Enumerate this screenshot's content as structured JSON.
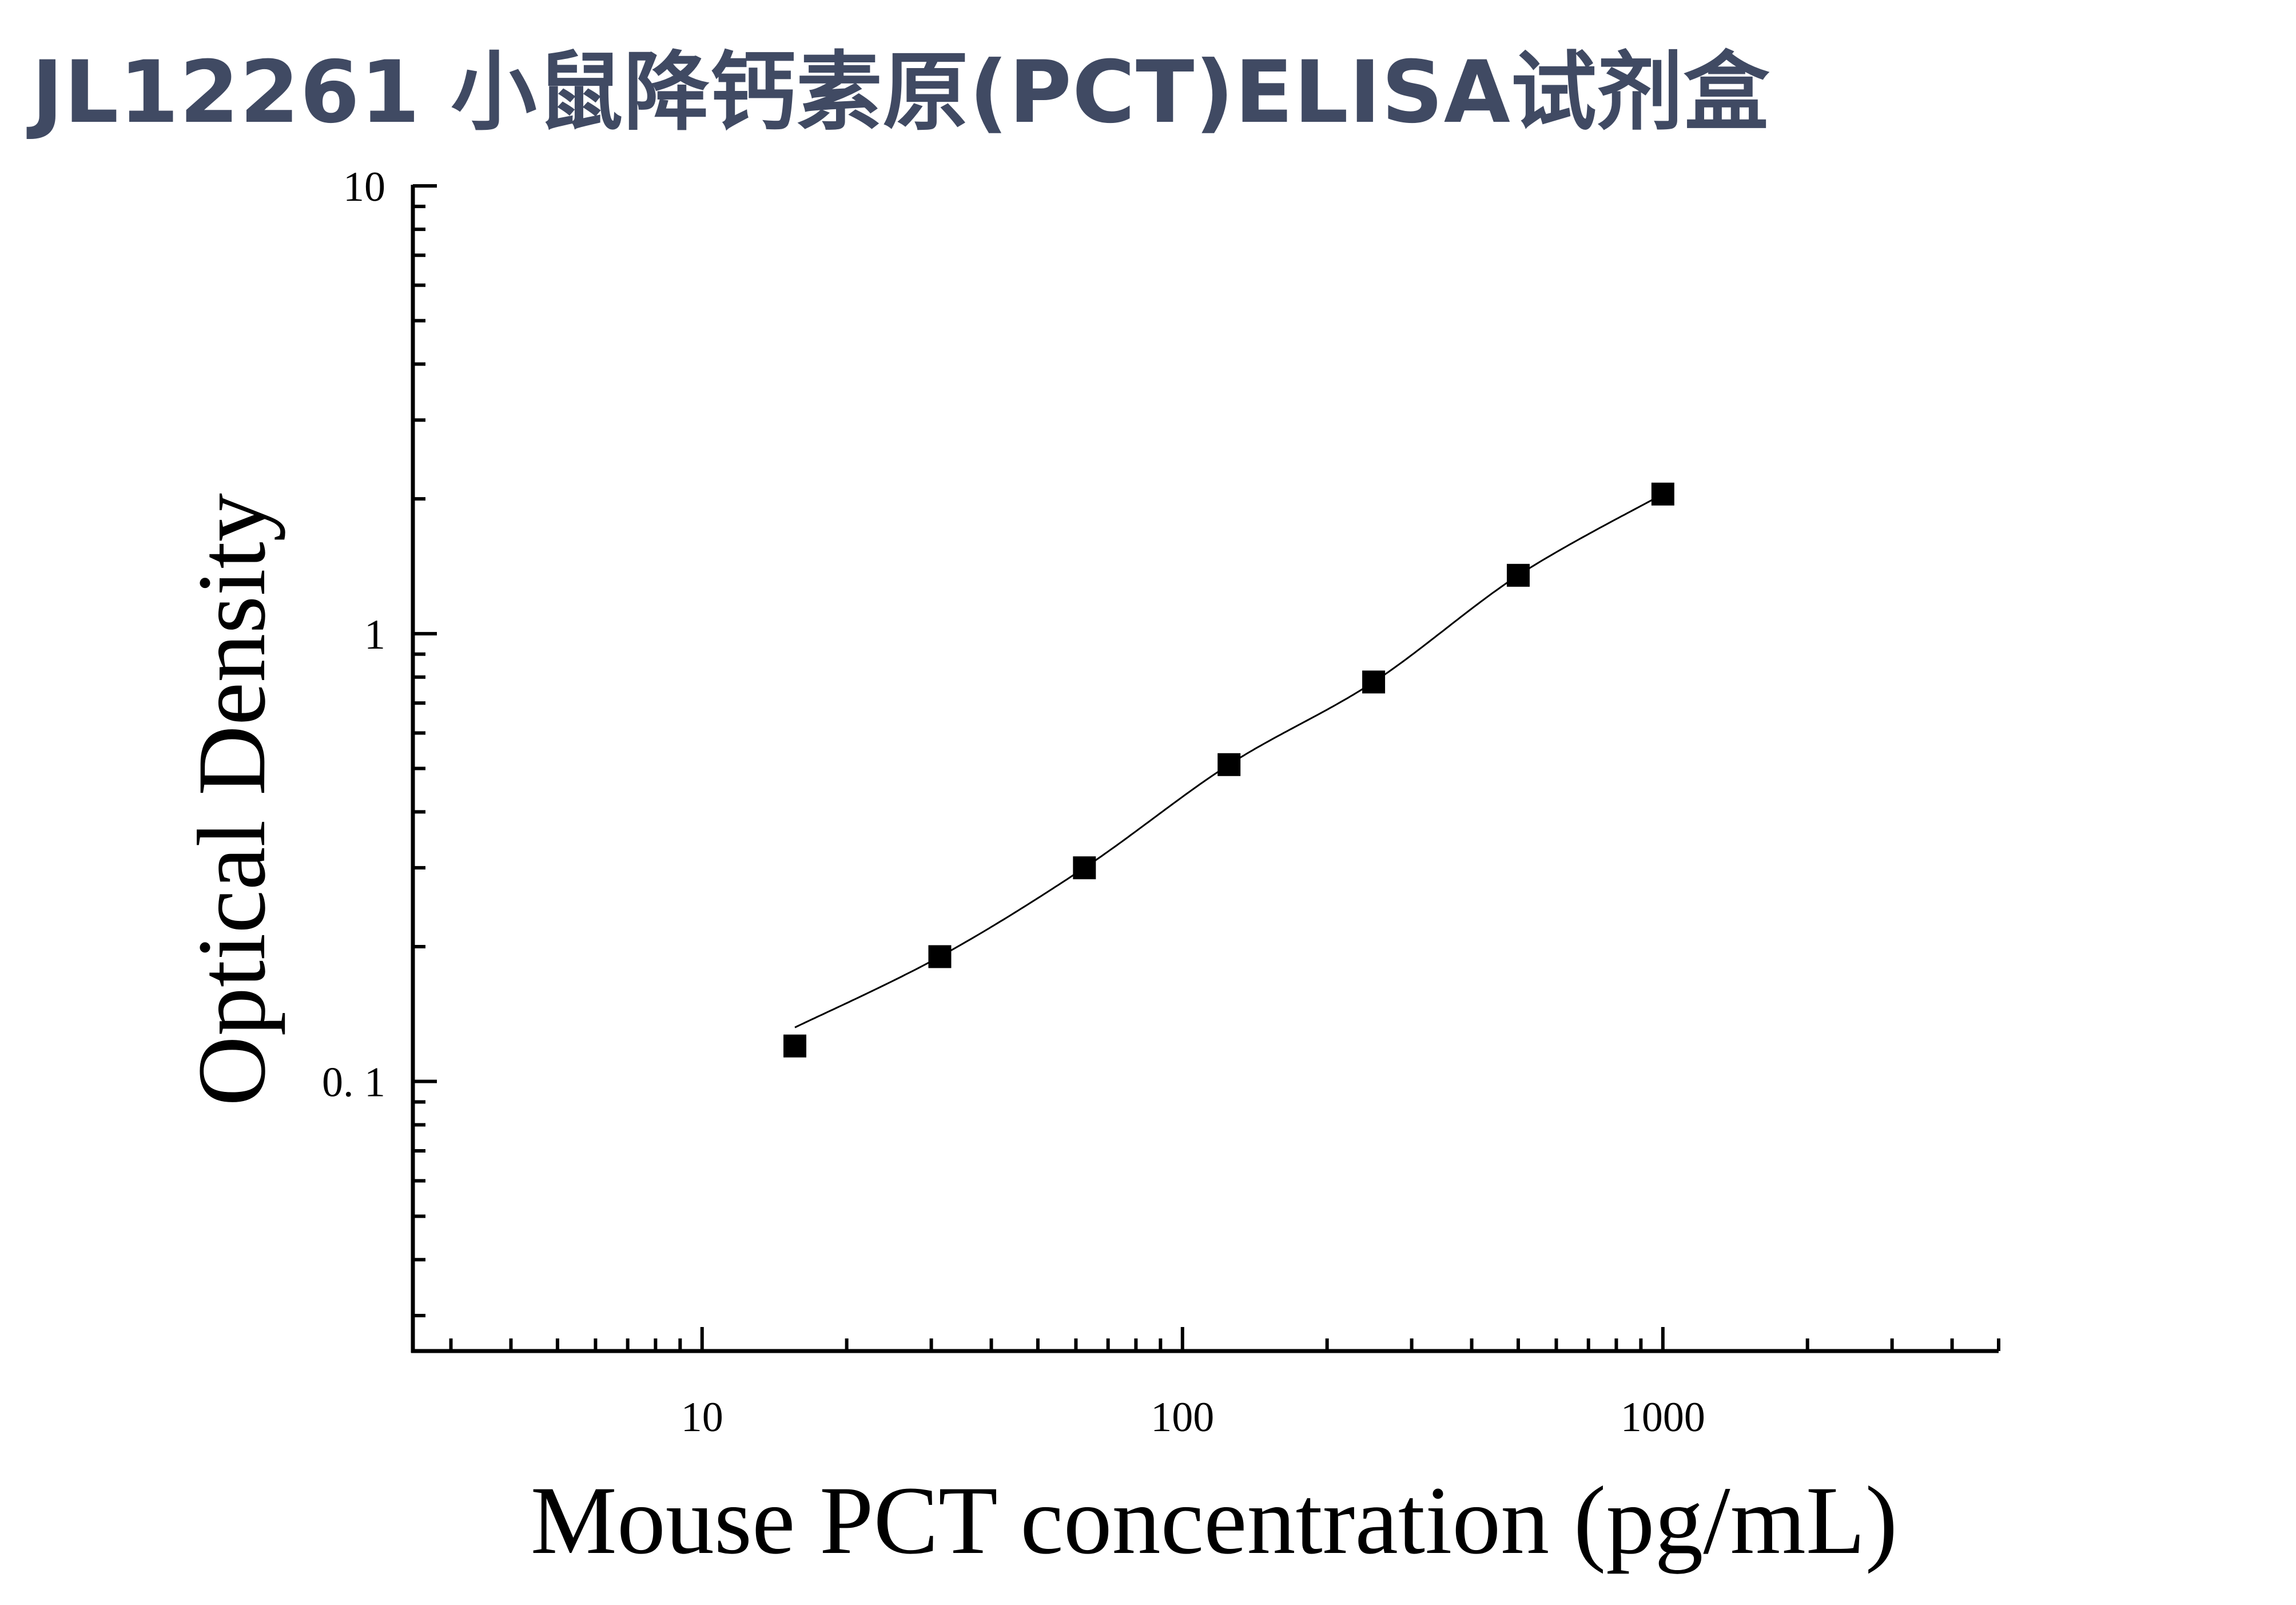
{
  "title": "JL12261 小鼠降钙素原(PCT)ELISA试剂盒",
  "chart_data": {
    "type": "scatter",
    "xlabel": "Mouse PCT concentration (pg/mL)",
    "ylabel": "Optical Density",
    "x_scale": "log",
    "y_scale": "log",
    "xlim": [
      2.5,
      5000
    ],
    "ylim": [
      0.025,
      10
    ],
    "x_ticks": [
      "10",
      "100",
      "1000"
    ],
    "y_ticks": [
      "0. 1",
      "1",
      "10"
    ],
    "x_tick_values": [
      10,
      100,
      1000
    ],
    "y_tick_values": [
      0.1,
      1,
      10
    ],
    "grid": false,
    "series": [
      {
        "x": [
          15.6,
          31.25,
          62.5,
          125,
          250,
          500,
          1000
        ],
        "y": [
          0.12,
          0.19,
          0.3,
          0.51,
          0.78,
          1.35,
          2.05
        ],
        "marker": "square",
        "fit": "smooth-curve"
      }
    ],
    "colors": {
      "marker": "#000000",
      "line": "#000000",
      "title": "#404a63"
    }
  }
}
